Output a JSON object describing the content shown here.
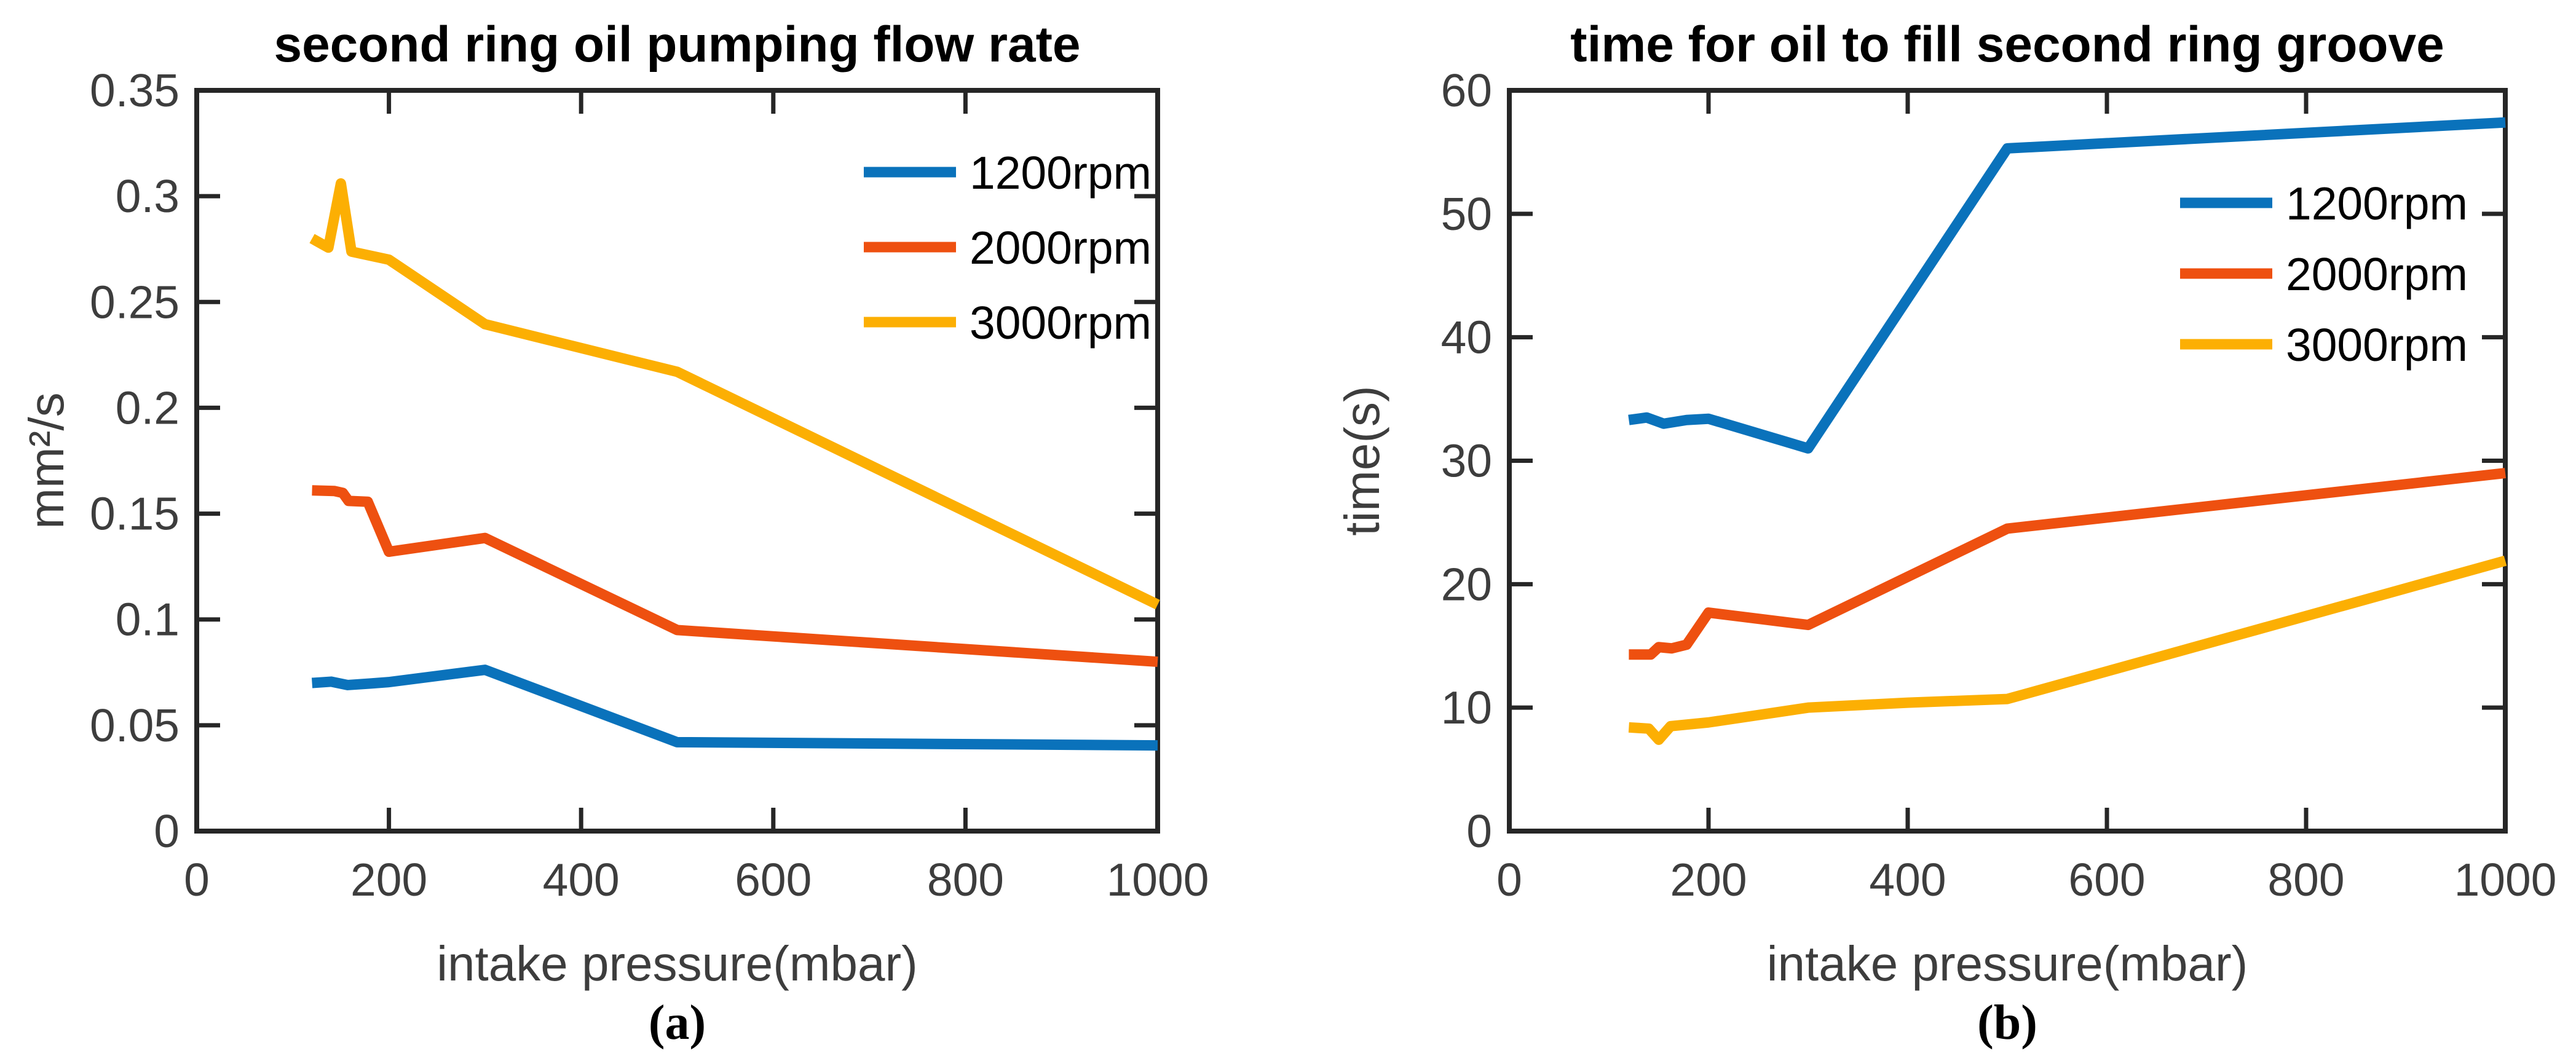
{
  "figure": {
    "background": "#ffffff",
    "axis_color": "#262626",
    "tick_label_color": "#3d3d3d",
    "axis_label_color": "#3d3d3d",
    "series_colors": {
      "rpm1200": "#0a72bb",
      "rpm2000": "#ee5010",
      "rpm3000": "#fcaf03"
    }
  },
  "chart_data": [
    {
      "type": "line",
      "panel_label": "(a)",
      "title": "second ring oil pumping flow rate",
      "xlabel": "intake pressure(mbar)",
      "ylabel": "mm²/s",
      "xlim": [
        0,
        1000
      ],
      "ylim": [
        0,
        0.35
      ],
      "xticks": [
        0,
        200,
        400,
        600,
        800,
        1000
      ],
      "xtick_labels": [
        "0",
        "200",
        "400",
        "600",
        "800",
        "1000"
      ],
      "yticks": [
        0,
        0.05,
        0.1,
        0.15,
        0.2,
        0.25,
        0.3,
        0.35
      ],
      "ytick_labels": [
        "0",
        "0.05",
        "0.1",
        "0.15",
        "0.2",
        "0.25",
        "0.3",
        "0.35"
      ],
      "grid": false,
      "legend_position": "upper-right-inside",
      "legend_box": false,
      "series": [
        {
          "name": "1200rpm",
          "color_key": "rpm1200",
          "points": [
            [
              120,
              0.07
            ],
            [
              140,
              0.0706
            ],
            [
              157,
              0.069
            ],
            [
              180,
              0.0697
            ],
            [
              200,
              0.0704
            ],
            [
              300,
              0.0762
            ],
            [
              500,
              0.042
            ],
            [
              1000,
              0.0405
            ]
          ]
        },
        {
          "name": "2000rpm",
          "color_key": "rpm2000",
          "points": [
            [
              120,
              0.161
            ],
            [
              143,
              0.1607
            ],
            [
              152,
              0.1598
            ],
            [
              158,
              0.156
            ],
            [
              178,
              0.1556
            ],
            [
              200,
              0.132
            ],
            [
              300,
              0.1385
            ],
            [
              500,
              0.095
            ],
            [
              1000,
              0.08
            ]
          ]
        },
        {
          "name": "3000rpm",
          "color_key": "rpm3000",
          "points": [
            [
              120,
              0.28
            ],
            [
              137,
              0.2757
            ],
            [
              150,
              0.306
            ],
            [
              161,
              0.2738
            ],
            [
              200,
              0.27
            ],
            [
              300,
              0.2395
            ],
            [
              500,
              0.217
            ],
            [
              1000,
              0.107
            ]
          ]
        }
      ]
    },
    {
      "type": "line",
      "panel_label": "(b)",
      "title": "time for oil to fill second ring groove",
      "xlabel": "intake pressure(mbar)",
      "ylabel": "time(s)",
      "xlim": [
        0,
        1000
      ],
      "ylim": [
        0,
        60
      ],
      "xticks": [
        0,
        200,
        400,
        600,
        800,
        1000
      ],
      "xtick_labels": [
        "0",
        "200",
        "400",
        "600",
        "800",
        "1000"
      ],
      "yticks": [
        0,
        10,
        20,
        30,
        40,
        50,
        60
      ],
      "ytick_labels": [
        "0",
        "10",
        "20",
        "30",
        "40",
        "50",
        "60"
      ],
      "grid": false,
      "legend_position": "middle-right-inside",
      "legend_box": false,
      "series": [
        {
          "name": "1200rpm",
          "color_key": "rpm1200",
          "points": [
            [
              120,
              33.3
            ],
            [
              138,
              33.5
            ],
            [
              155,
              33.0
            ],
            [
              178,
              33.3
            ],
            [
              200,
              33.4
            ],
            [
              300,
              31.0
            ],
            [
              500,
              55.3
            ],
            [
              1000,
              57.4
            ]
          ]
        },
        {
          "name": "2000rpm",
          "color_key": "rpm2000",
          "points": [
            [
              120,
              14.3
            ],
            [
              142,
              14.3
            ],
            [
              150,
              14.9
            ],
            [
              163,
              14.8
            ],
            [
              178,
              15.1
            ],
            [
              200,
              17.7
            ],
            [
              300,
              16.7
            ],
            [
              500,
              24.5
            ],
            [
              1000,
              29.0
            ]
          ]
        },
        {
          "name": "3000rpm",
          "color_key": "rpm3000",
          "points": [
            [
              120,
              8.4
            ],
            [
              140,
              8.3
            ],
            [
              150,
              7.4
            ],
            [
              162,
              8.5
            ],
            [
              200,
              8.8
            ],
            [
              300,
              10.0
            ],
            [
              400,
              10.4
            ],
            [
              500,
              10.7
            ],
            [
              1000,
              21.9
            ]
          ]
        }
      ]
    }
  ]
}
